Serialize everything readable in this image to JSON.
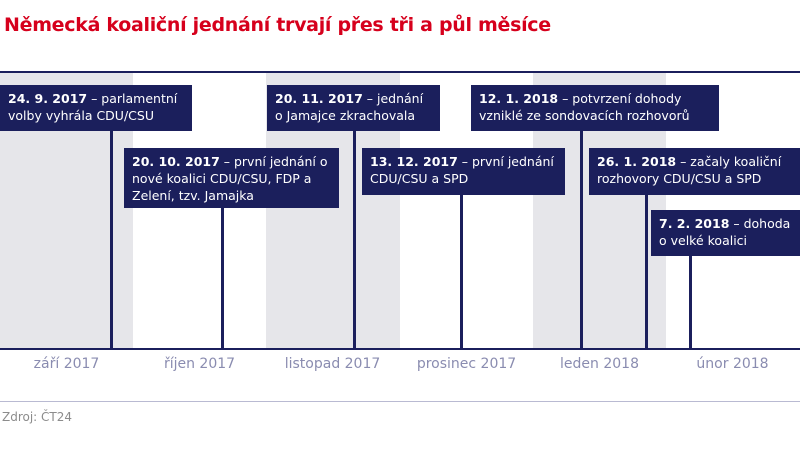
{
  "title": "Německá koaliční jednání trvají přes tři a půl měsíce",
  "colors": {
    "title": "#d6001c",
    "navy": "#1b1f5c",
    "band": "#e6e6ea",
    "month_label": "#8a8cb0"
  },
  "months": [
    "září 2017",
    "říjen 2017",
    "listopad 2017",
    "prosinec 2017",
    "leden 2018",
    "únor 2018"
  ],
  "events": [
    {
      "date": "24. 9. 2017",
      "text": " – parlamentní volby vyhrála CDU/CSU"
    },
    {
      "date": "20. 10. 2017",
      "text": " – první jednání o nové koalici CDU/CSU, FDP a Zelení, tzv. Jamajka"
    },
    {
      "date": "20. 11. 2017",
      "text": " – jednání o Jamajce zkrachovala"
    },
    {
      "date": "13. 12. 2017",
      "text": " – první jednání CDU/CSU a SPD"
    },
    {
      "date": "12. 1. 2018",
      "text": " – potvrzení dohody vzniklé ze sondovacích rozhovorů"
    },
    {
      "date": "26. 1. 2018",
      "text": " – začaly koaliční rozhovory CDU/CSU a SPD"
    },
    {
      "date": "7. 2. 2018",
      "text": " – dohoda o velké koalici"
    }
  ],
  "source": "Zdroj: ČT24"
}
